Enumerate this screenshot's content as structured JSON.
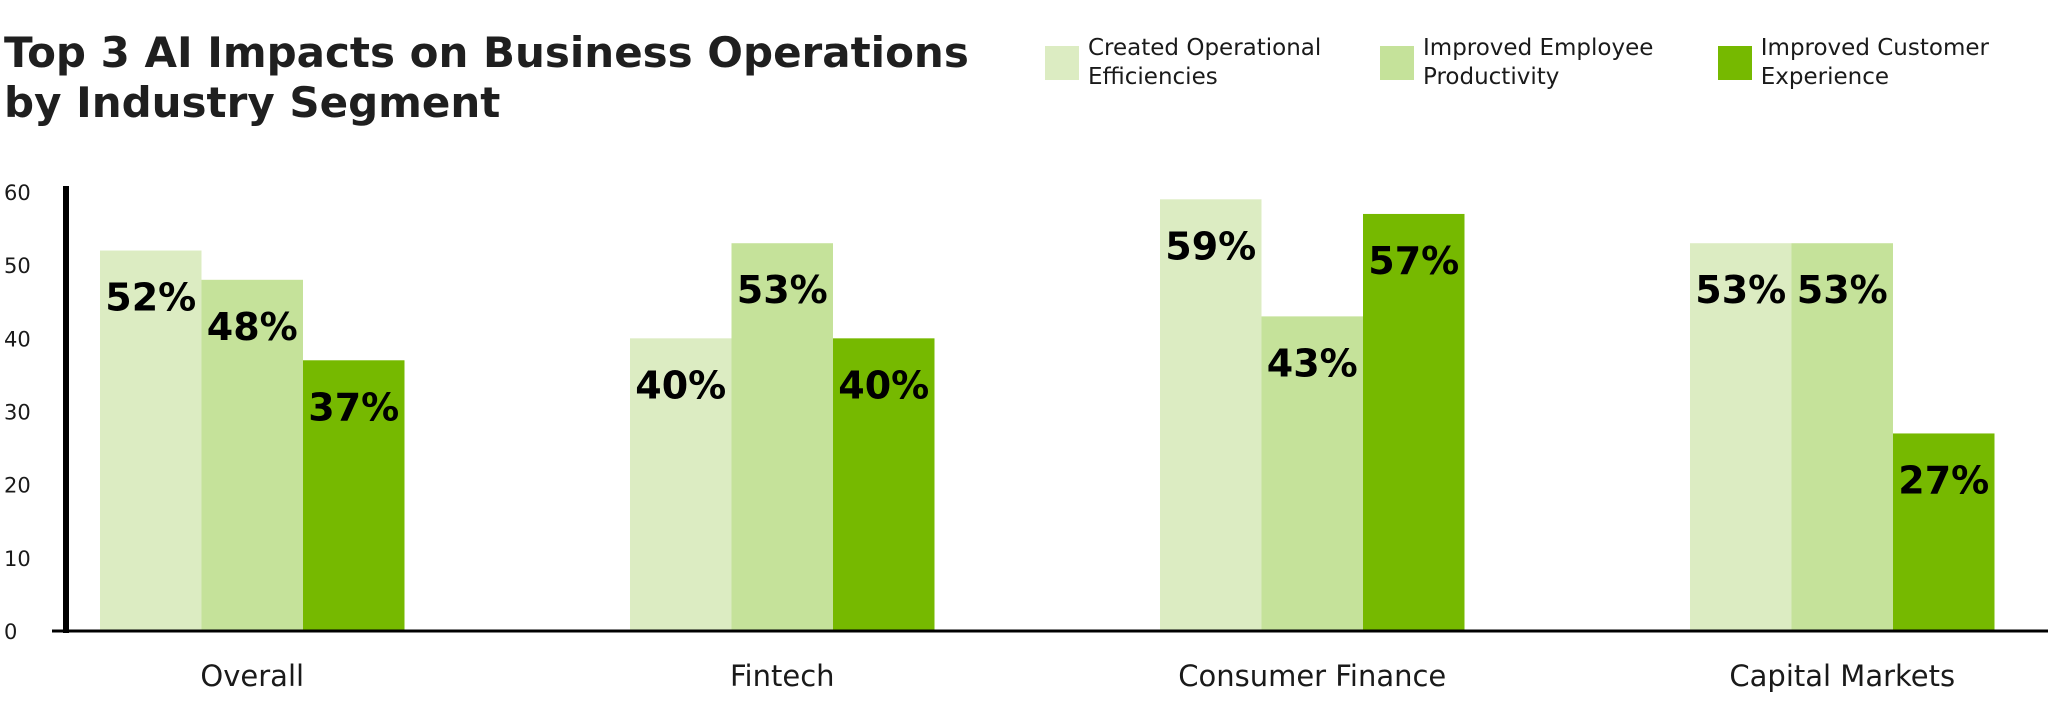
{
  "chart_data": {
    "type": "bar",
    "title": "Top 3 AI Impacts on Business Operations by Industry Segment",
    "categories": [
      "Overall",
      "Fintech",
      "Consumer Finance",
      "Capital Markets"
    ],
    "series": [
      {
        "name": "Created Operational Efficiencies",
        "values": [
          52,
          40,
          59,
          53
        ],
        "color": "#dcecc2"
      },
      {
        "name": "Improved Employee Productivity",
        "values": [
          48,
          53,
          43,
          53
        ],
        "color": "#c5e29a"
      },
      {
        "name": "Improved Customer Experience",
        "values": [
          37,
          40,
          57,
          27
        ],
        "color": "#76b900"
      }
    ],
    "data_labels": [
      [
        "52%",
        "48%",
        "37%"
      ],
      [
        "40%",
        "53%",
        "40%"
      ],
      [
        "59%",
        "43%",
        "57%"
      ],
      [
        "53%",
        "53%",
        "27%"
      ]
    ],
    "ylim": [
      0,
      60
    ],
    "yticks": [
      "0",
      "10",
      "20",
      "30",
      "40",
      "50",
      "60"
    ],
    "xlabel": "",
    "ylabel": "",
    "legend_position": "top-right",
    "grid": false
  }
}
